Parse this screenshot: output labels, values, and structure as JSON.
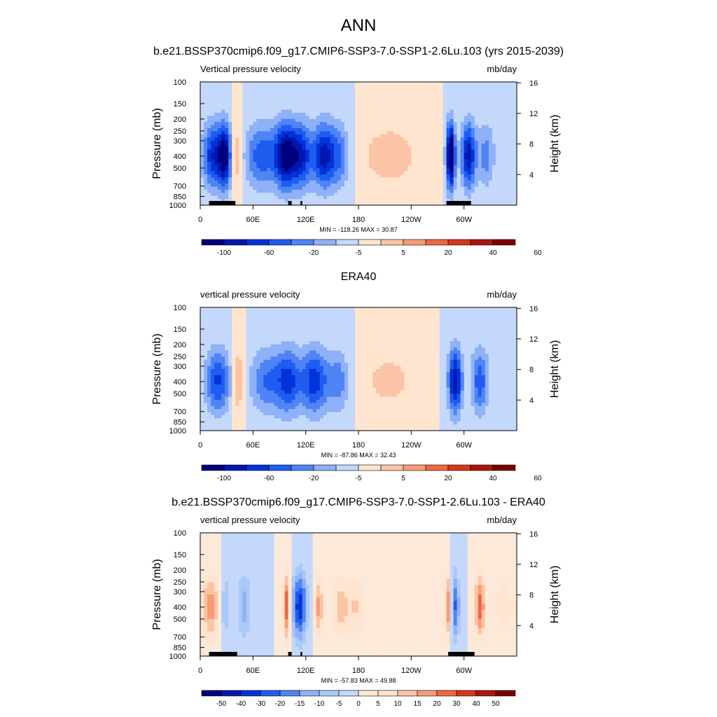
{
  "figure": {
    "title": "ANN"
  },
  "colors": {
    "abs_scale": [
      "#00007f",
      "#0017b0",
      "#0033d9",
      "#1f5cf0",
      "#4f84f5",
      "#8fb1f7",
      "#c4d8fb",
      "#ffe5cf",
      "#fcc4a6",
      "#f89c77",
      "#f0673f",
      "#d8361a",
      "#a8170c",
      "#7a0000"
    ],
    "diff_scale": [
      "#00007f",
      "#0017b0",
      "#0033d9",
      "#1f5cf0",
      "#4f84f5",
      "#8fb1f7",
      "#aac8f8",
      "#c4d8fb",
      "#fde9d9",
      "#ffe5cf",
      "#fcc4a6",
      "#f89c77",
      "#f0673f",
      "#d8361a",
      "#a8170c",
      "#7a0000"
    ],
    "topography": "#000000"
  },
  "chart_data": [
    {
      "type": "heatmap",
      "title": "b.e21.BSSP370cmip6.f09_g17.CMIP6-SSP3-7.0-SSP1-2.6Lu.103 (yrs 2015-2039)",
      "left_string": "Vertical pressure velocity",
      "right_string": "mb/day",
      "ylabel": "Pressure (mb)",
      "ylabel_right": "Height (km)",
      "x_ticks": [
        "0",
        "60E",
        "120E",
        "180",
        "120W",
        "60W"
      ],
      "x_tick_lon": [
        0,
        60,
        120,
        180,
        240,
        300
      ],
      "xlim": [
        0,
        360
      ],
      "y_ticks": [
        "100",
        "150",
        "200",
        "250",
        "300",
        "400",
        "500",
        "700",
        "850",
        "1000"
      ],
      "y_tick_values": [
        100,
        150,
        200,
        250,
        300,
        400,
        500,
        700,
        850,
        1000
      ],
      "ylim": [
        1000,
        100
      ],
      "y_scale": "log",
      "y_right_ticks": [
        "16",
        "12",
        "8",
        "4"
      ],
      "y_right_values": [
        16,
        12,
        8,
        4
      ],
      "stats": "MIN = -118.26  MAX =  30.87",
      "colorbar_labels": [
        "-100",
        "-60",
        "-20",
        "-5",
        "5",
        "20",
        "40",
        "60"
      ],
      "colorbar_bins": 14,
      "features": [
        {
          "lon": 15,
          "v": -30,
          "w": 12
        },
        {
          "lon": 28,
          "v": -35,
          "w": 7
        },
        {
          "lon": 42,
          "v": 12,
          "w": 6
        },
        {
          "lon": 70,
          "v": -22,
          "w": 20
        },
        {
          "lon": 97,
          "v": -38,
          "w": 12
        },
        {
          "lon": 115,
          "v": -30,
          "w": 12
        },
        {
          "lon": 140,
          "v": -32,
          "w": 12
        },
        {
          "lon": 158,
          "v": -18,
          "w": 12
        },
        {
          "lon": 215,
          "v": 10,
          "w": 35
        },
        {
          "lon": 285,
          "v": -50,
          "w": 5
        },
        {
          "lon": 305,
          "v": -35,
          "w": 8
        },
        {
          "lon": 325,
          "v": -15,
          "w": 10
        }
      ],
      "topography": [
        [
          10,
          40
        ],
        [
          100,
          104
        ],
        [
          114,
          116
        ],
        [
          280,
          308
        ]
      ]
    },
    {
      "type": "heatmap",
      "title": "ERA40",
      "left_string": "vertical pressure velocity",
      "right_string": "mb/day",
      "ylabel": "Pressure (mb)",
      "ylabel_right": "Height (km)",
      "x_ticks": [
        "0",
        "60E",
        "120E",
        "180",
        "120W",
        "60W"
      ],
      "x_tick_lon": [
        0,
        60,
        120,
        180,
        240,
        300
      ],
      "xlim": [
        0,
        360
      ],
      "y_ticks": [
        "100",
        "150",
        "200",
        "250",
        "300",
        "400",
        "500",
        "700",
        "850",
        "1000"
      ],
      "y_tick_values": [
        100,
        150,
        200,
        250,
        300,
        400,
        500,
        700,
        850,
        1000
      ],
      "ylim": [
        1000,
        100
      ],
      "y_scale": "log",
      "y_right_ticks": [
        "16",
        "12",
        "8",
        "4"
      ],
      "y_right_values": [
        16,
        12,
        8,
        4
      ],
      "stats": "MIN = -87.86  MAX =  32.43",
      "colorbar_labels": [
        "-100",
        "-60",
        "-20",
        "-5",
        "5",
        "20",
        "40",
        "60"
      ],
      "colorbar_bins": 14,
      "features": [
        {
          "lon": 20,
          "v": -25,
          "w": 14
        },
        {
          "lon": 43,
          "v": 14,
          "w": 6
        },
        {
          "lon": 75,
          "v": -18,
          "w": 18
        },
        {
          "lon": 100,
          "v": -25,
          "w": 14
        },
        {
          "lon": 130,
          "v": -28,
          "w": 16
        },
        {
          "lon": 158,
          "v": -15,
          "w": 12
        },
        {
          "lon": 215,
          "v": 8,
          "w": 35
        },
        {
          "lon": 290,
          "v": -35,
          "w": 8
        },
        {
          "lon": 318,
          "v": -22,
          "w": 10
        }
      ],
      "topography": []
    },
    {
      "type": "heatmap",
      "title": "b.e21.BSSP370cmip6.f09_g17.CMIP6-SSP3-7.0-SSP1-2.6Lu.103 - ERA40",
      "left_string": "vertical pressure velocity",
      "right_string": "mb/day",
      "ylabel": "Pressure (mb)",
      "ylabel_right": "Height (km)",
      "x_ticks": [
        "0",
        "60E",
        "120E",
        "180",
        "120W",
        "60W"
      ],
      "x_tick_lon": [
        0,
        60,
        120,
        180,
        240,
        300
      ],
      "xlim": [
        0,
        360
      ],
      "y_ticks": [
        "100",
        "150",
        "200",
        "250",
        "300",
        "400",
        "500",
        "700",
        "850",
        "1000"
      ],
      "y_tick_values": [
        100,
        150,
        200,
        250,
        300,
        400,
        500,
        700,
        850,
        1000
      ],
      "ylim": [
        1000,
        100
      ],
      "y_scale": "log",
      "y_right_ticks": [
        "16",
        "12",
        "8",
        "4"
      ],
      "y_right_values": [
        16,
        12,
        8,
        4
      ],
      "stats": "MIN = -57.83  MAX =  49.88",
      "colorbar_labels": [
        "-50",
        "-40",
        "-30",
        "-20",
        "-15",
        "-10",
        "-5",
        "0",
        "5",
        "10",
        "15",
        "20",
        "30",
        "40",
        "50"
      ],
      "colorbar_bins": 16,
      "features": [
        {
          "lon": 12,
          "v": 22,
          "w": 10
        },
        {
          "lon": 28,
          "v": -12,
          "w": 6
        },
        {
          "lon": 50,
          "v": -15,
          "w": 8
        },
        {
          "lon": 98,
          "v": 30,
          "w": 4
        },
        {
          "lon": 113,
          "v": -35,
          "w": 8
        },
        {
          "lon": 135,
          "v": 20,
          "w": 5
        },
        {
          "lon": 160,
          "v": 15,
          "w": 10
        },
        {
          "lon": 178,
          "v": 12,
          "w": 10
        },
        {
          "lon": 282,
          "v": 25,
          "w": 4
        },
        {
          "lon": 290,
          "v": -25,
          "w": 5
        },
        {
          "lon": 318,
          "v": 28,
          "w": 6
        },
        {
          "lon": 345,
          "v": 10,
          "w": 12
        }
      ],
      "topography": [
        [
          10,
          42
        ],
        [
          100,
          104
        ],
        [
          114,
          116
        ],
        [
          282,
          312
        ]
      ]
    }
  ]
}
